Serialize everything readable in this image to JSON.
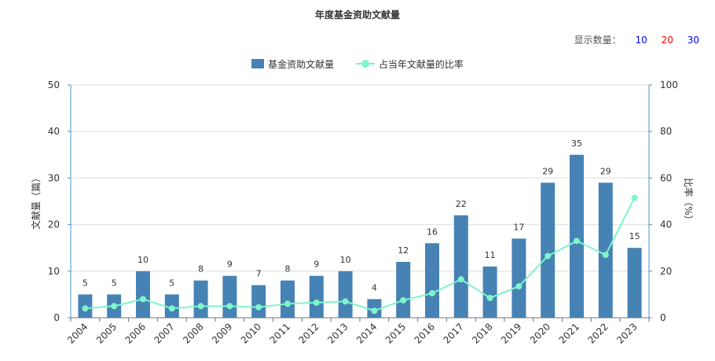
{
  "title": "年度基金资助文献量",
  "display_count": {
    "label": "显示数量：",
    "options": [
      {
        "label": "10",
        "color": "#0000ff"
      },
      {
        "label": "20",
        "color": "#ff0000"
      },
      {
        "label": "30",
        "color": "#0000ff"
      }
    ]
  },
  "colors": {
    "bar": "#4682b4",
    "line": "#7ff5c9",
    "axis": "#4a94c4",
    "grid": "#dddddd"
  },
  "chart_data": {
    "type": "bar",
    "categories": [
      "2004",
      "2005",
      "2006",
      "2007",
      "2008",
      "2009",
      "2010",
      "2011",
      "2012",
      "2013",
      "2014",
      "2015",
      "2016",
      "2017",
      "2018",
      "2019",
      "2020",
      "2021",
      "2022",
      "2023"
    ],
    "series": [
      {
        "name": "基金资助文献量",
        "type": "bar",
        "axis": "left",
        "values": [
          5,
          5,
          10,
          5,
          8,
          9,
          7,
          8,
          9,
          10,
          4,
          12,
          16,
          22,
          11,
          17,
          29,
          35,
          29,
          15
        ]
      },
      {
        "name": "占当年文献量的比率",
        "type": "line",
        "axis": "right",
        "values": [
          4,
          5,
          8,
          4,
          5,
          5,
          4.5,
          6,
          6.5,
          7,
          3,
          7.5,
          10.5,
          16.5,
          8.5,
          13.5,
          26.5,
          33,
          27,
          51.5
        ]
      }
    ],
    "ylabel": "文献量（篇）",
    "ylim": [
      0,
      50
    ],
    "yticks": [
      0,
      10,
      20,
      30,
      40,
      50
    ],
    "y2label": "比率（%）",
    "y2lim": [
      0,
      100
    ],
    "y2ticks": [
      0,
      20,
      40,
      60,
      80,
      100
    ],
    "grid": true,
    "legend": "top-center",
    "bar_value_labels": true
  }
}
